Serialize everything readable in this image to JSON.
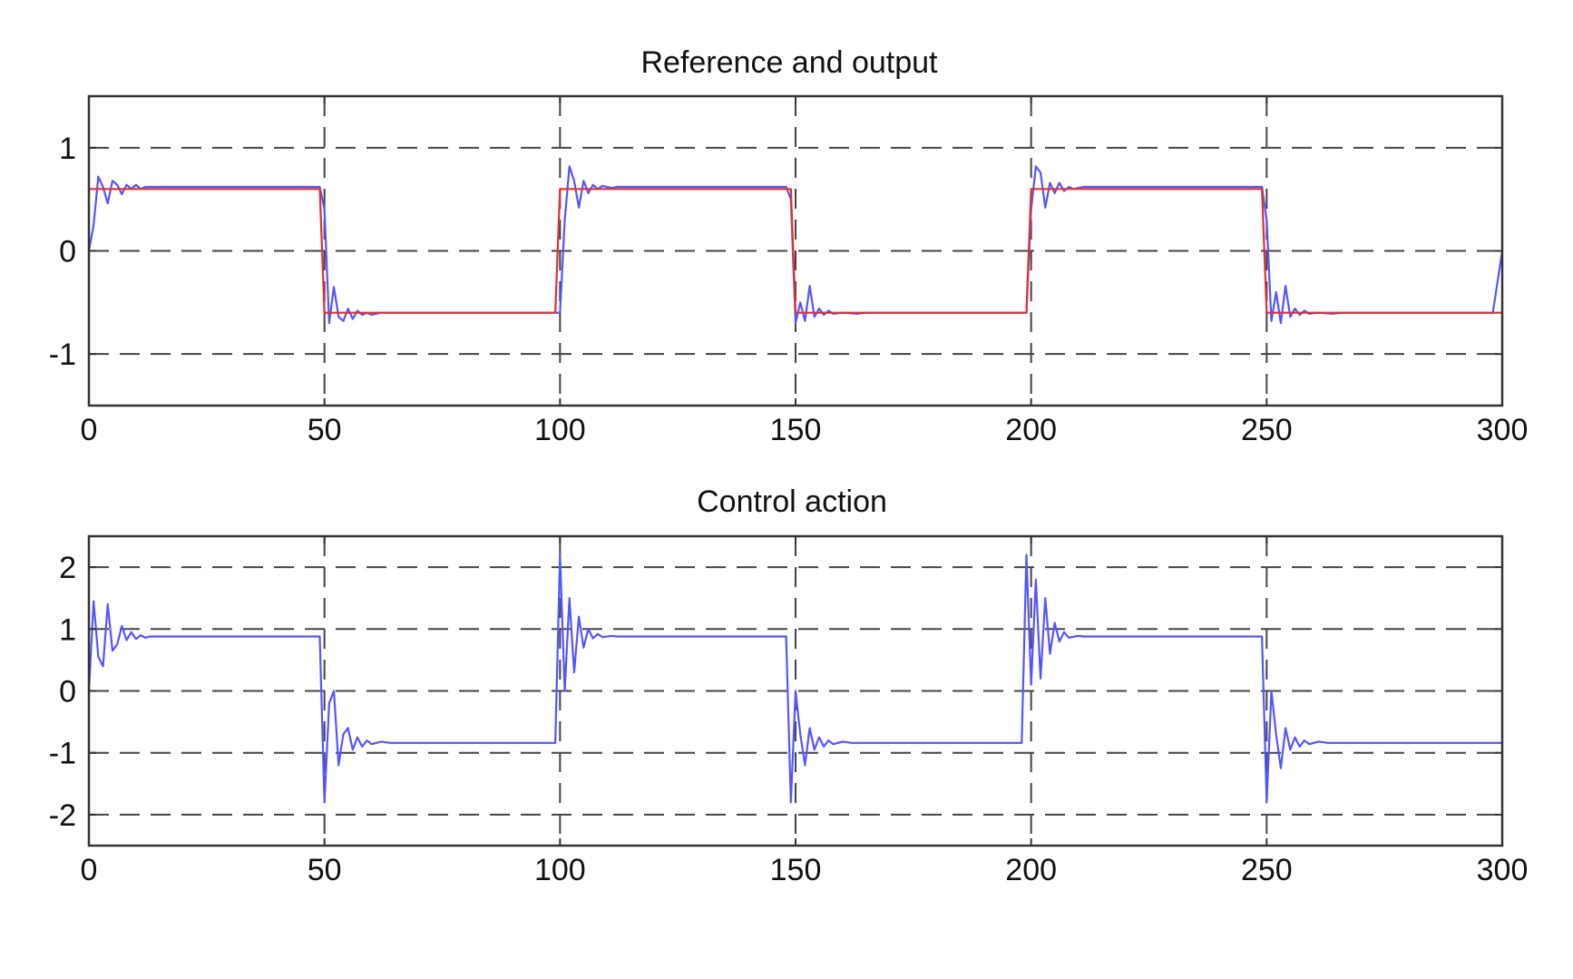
{
  "chart_data": [
    {
      "type": "line",
      "title": "Reference and output",
      "xlabel": "",
      "ylabel": "",
      "xlim": [
        0,
        300
      ],
      "ylim": [
        -1.5,
        1.5
      ],
      "grid": true,
      "x_ticks": [
        0,
        50,
        100,
        150,
        200,
        250,
        300
      ],
      "x_tick_labels": [
        "0",
        "50",
        "100",
        "150",
        "200",
        "250",
        "300"
      ],
      "y_ticks": [
        1,
        0,
        -1
      ],
      "y_tick_labels": [
        "1",
        "0",
        "-1"
      ],
      "series": [
        {
          "color": "#5555ff",
          "points": [
            [
              0,
              0
            ],
            [
              1,
              0.25
            ],
            [
              2,
              0.72
            ],
            [
              3,
              0.62
            ],
            [
              4,
              0.46
            ],
            [
              5,
              0.68
            ],
            [
              6,
              0.64
            ],
            [
              7,
              0.55
            ],
            [
              8,
              0.64
            ],
            [
              9,
              0.6
            ],
            [
              10,
              0.64
            ],
            [
              11,
              0.6
            ],
            [
              12,
              0.62
            ],
            [
              49,
              0.62
            ],
            [
              50,
              0.4
            ],
            [
              51,
              -0.7
            ],
            [
              52,
              -0.35
            ],
            [
              53,
              -0.64
            ],
            [
              54,
              -0.68
            ],
            [
              55,
              -0.56
            ],
            [
              56,
              -0.66
            ],
            [
              57,
              -0.58
            ],
            [
              58,
              -0.62
            ],
            [
              59,
              -0.6
            ],
            [
              60,
              -0.62
            ],
            [
              62,
              -0.6
            ],
            [
              100,
              -0.6
            ],
            [
              101,
              0.3
            ],
            [
              102,
              0.82
            ],
            [
              103,
              0.68
            ],
            [
              104,
              0.42
            ],
            [
              105,
              0.68
            ],
            [
              106,
              0.56
            ],
            [
              107,
              0.64
            ],
            [
              108,
              0.6
            ],
            [
              109,
              0.63
            ],
            [
              111,
              0.61
            ],
            [
              112,
              0.62
            ],
            [
              148,
              0.62
            ],
            [
              149,
              0.5
            ],
            [
              150,
              -0.7
            ],
            [
              151,
              -0.5
            ],
            [
              152,
              -0.68
            ],
            [
              153,
              -0.34
            ],
            [
              154,
              -0.64
            ],
            [
              155,
              -0.56
            ],
            [
              156,
              -0.62
            ],
            [
              157,
              -0.58
            ],
            [
              158,
              -0.61
            ],
            [
              160,
              -0.6
            ],
            [
              163,
              -0.61
            ],
            [
              165,
              -0.6
            ],
            [
              199,
              -0.6
            ],
            [
              200,
              0.4
            ],
            [
              201,
              0.82
            ],
            [
              202,
              0.76
            ],
            [
              203,
              0.42
            ],
            [
              204,
              0.66
            ],
            [
              205,
              0.56
            ],
            [
              206,
              0.66
            ],
            [
              207,
              0.58
            ],
            [
              208,
              0.62
            ],
            [
              209,
              0.6
            ],
            [
              211,
              0.62
            ],
            [
              249,
              0.62
            ],
            [
              250,
              0.3
            ],
            [
              251,
              -0.68
            ],
            [
              252,
              -0.4
            ],
            [
              253,
              -0.7
            ],
            [
              254,
              -0.34
            ],
            [
              255,
              -0.64
            ],
            [
              256,
              -0.56
            ],
            [
              257,
              -0.62
            ],
            [
              258,
              -0.58
            ],
            [
              259,
              -0.61
            ],
            [
              261,
              -0.6
            ],
            [
              264,
              -0.61
            ],
            [
              266,
              -0.6
            ],
            [
              298,
              -0.6
            ],
            [
              299,
              -0.3
            ],
            [
              300,
              0.0
            ]
          ]
        },
        {
          "color": "#e03030",
          "points": [
            [
              0,
              0.6
            ],
            [
              49,
              0.6
            ],
            [
              50,
              -0.6
            ],
            [
              99,
              -0.6
            ],
            [
              100,
              0.6
            ],
            [
              149,
              0.6
            ],
            [
              150,
              -0.6
            ],
            [
              199,
              -0.6
            ],
            [
              200,
              0.6
            ],
            [
              249,
              0.6
            ],
            [
              250,
              -0.6
            ],
            [
              300,
              -0.6
            ]
          ]
        }
      ]
    },
    {
      "type": "line",
      "title": "Control action",
      "xlabel": "",
      "ylabel": "",
      "xlim": [
        0,
        300
      ],
      "ylim": [
        -2.5,
        2.5
      ],
      "grid": true,
      "x_ticks": [
        0,
        50,
        100,
        150,
        200,
        250,
        300
      ],
      "x_tick_labels": [
        "0",
        "50",
        "100",
        "150",
        "200",
        "250",
        "300"
      ],
      "y_ticks": [
        2,
        1,
        0,
        -1,
        -2
      ],
      "y_tick_labels": [
        "2",
        "1",
        "0",
        "-1",
        "-2"
      ],
      "series": [
        {
          "color": "#5555ff",
          "points": [
            [
              0,
              0
            ],
            [
              1,
              1.45
            ],
            [
              2,
              0.55
            ],
            [
              3,
              0.4
            ],
            [
              4,
              1.4
            ],
            [
              5,
              0.65
            ],
            [
              6,
              0.75
            ],
            [
              7,
              1.05
            ],
            [
              8,
              0.82
            ],
            [
              9,
              0.95
            ],
            [
              10,
              0.84
            ],
            [
              11,
              0.9
            ],
            [
              12,
              0.86
            ],
            [
              13,
              0.88
            ],
            [
              49,
              0.88
            ],
            [
              50,
              -1.8
            ],
            [
              51,
              -0.2
            ],
            [
              52,
              0.0
            ],
            [
              53,
              -1.2
            ],
            [
              54,
              -0.7
            ],
            [
              55,
              -0.6
            ],
            [
              56,
              -0.95
            ],
            [
              57,
              -0.75
            ],
            [
              58,
              -0.9
            ],
            [
              59,
              -0.8
            ],
            [
              60,
              -0.86
            ],
            [
              62,
              -0.82
            ],
            [
              64,
              -0.84
            ],
            [
              99,
              -0.84
            ],
            [
              100,
              2.2
            ],
            [
              101,
              0.0
            ],
            [
              102,
              1.5
            ],
            [
              103,
              0.3
            ],
            [
              104,
              1.2
            ],
            [
              105,
              0.7
            ],
            [
              106,
              1.0
            ],
            [
              107,
              0.85
            ],
            [
              108,
              0.92
            ],
            [
              109,
              0.87
            ],
            [
              111,
              0.89
            ],
            [
              112,
              0.88
            ],
            [
              148,
              0.88
            ],
            [
              149,
              -1.8
            ],
            [
              150,
              0.0
            ],
            [
              151,
              -0.7
            ],
            [
              152,
              -1.2
            ],
            [
              153,
              -0.6
            ],
            [
              154,
              -0.95
            ],
            [
              155,
              -0.75
            ],
            [
              156,
              -0.9
            ],
            [
              157,
              -0.8
            ],
            [
              158,
              -0.86
            ],
            [
              160,
              -0.82
            ],
            [
              162,
              -0.84
            ],
            [
              198,
              -0.84
            ],
            [
              199,
              2.2
            ],
            [
              200,
              0.1
            ],
            [
              201,
              1.8
            ],
            [
              202,
              0.2
            ],
            [
              203,
              1.5
            ],
            [
              204,
              0.6
            ],
            [
              205,
              1.1
            ],
            [
              206,
              0.8
            ],
            [
              207,
              0.95
            ],
            [
              208,
              0.86
            ],
            [
              210,
              0.89
            ],
            [
              211,
              0.88
            ],
            [
              249,
              0.88
            ],
            [
              250,
              -1.8
            ],
            [
              251,
              0.0
            ],
            [
              252,
              -0.7
            ],
            [
              253,
              -1.25
            ],
            [
              254,
              -0.6
            ],
            [
              255,
              -0.95
            ],
            [
              256,
              -0.75
            ],
            [
              257,
              -0.9
            ],
            [
              258,
              -0.8
            ],
            [
              259,
              -0.86
            ],
            [
              261,
              -0.82
            ],
            [
              263,
              -0.84
            ],
            [
              300,
              -0.84
            ]
          ]
        }
      ]
    }
  ]
}
